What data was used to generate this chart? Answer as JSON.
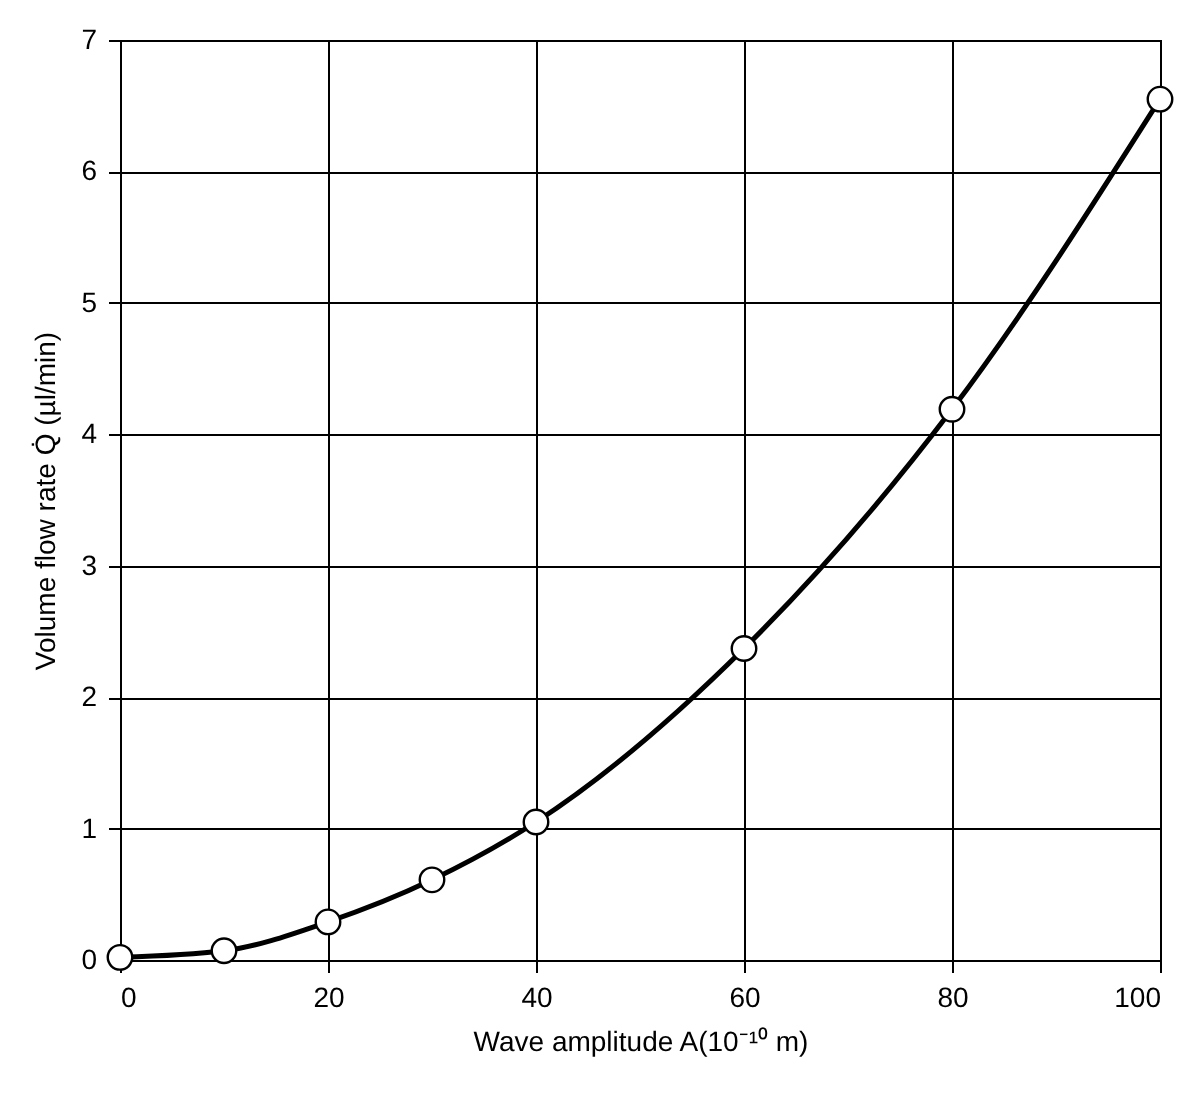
{
  "chart_data": {
    "type": "line",
    "xlabel": "Wave amplitude A(10⁻¹⁰ m)",
    "ylabel": "Volume flow rate Q̇ (µl/min)",
    "x": [
      0,
      10,
      20,
      30,
      40,
      60,
      80,
      100
    ],
    "series": [
      {
        "color": "#000000",
        "values": [
          0.02,
          0.07,
          0.29,
          0.61,
          1.05,
          2.37,
          4.19,
          6.55
        ]
      }
    ],
    "xlim": [
      0,
      100
    ],
    "xticks": [
      0,
      20,
      40,
      60,
      80,
      100
    ],
    "ylim": [
      0,
      7
    ],
    "yticks": [
      0,
      1,
      2,
      3,
      4,
      5,
      6,
      7
    ],
    "grid": true,
    "marker": "circle",
    "line_style": "solid"
  }
}
